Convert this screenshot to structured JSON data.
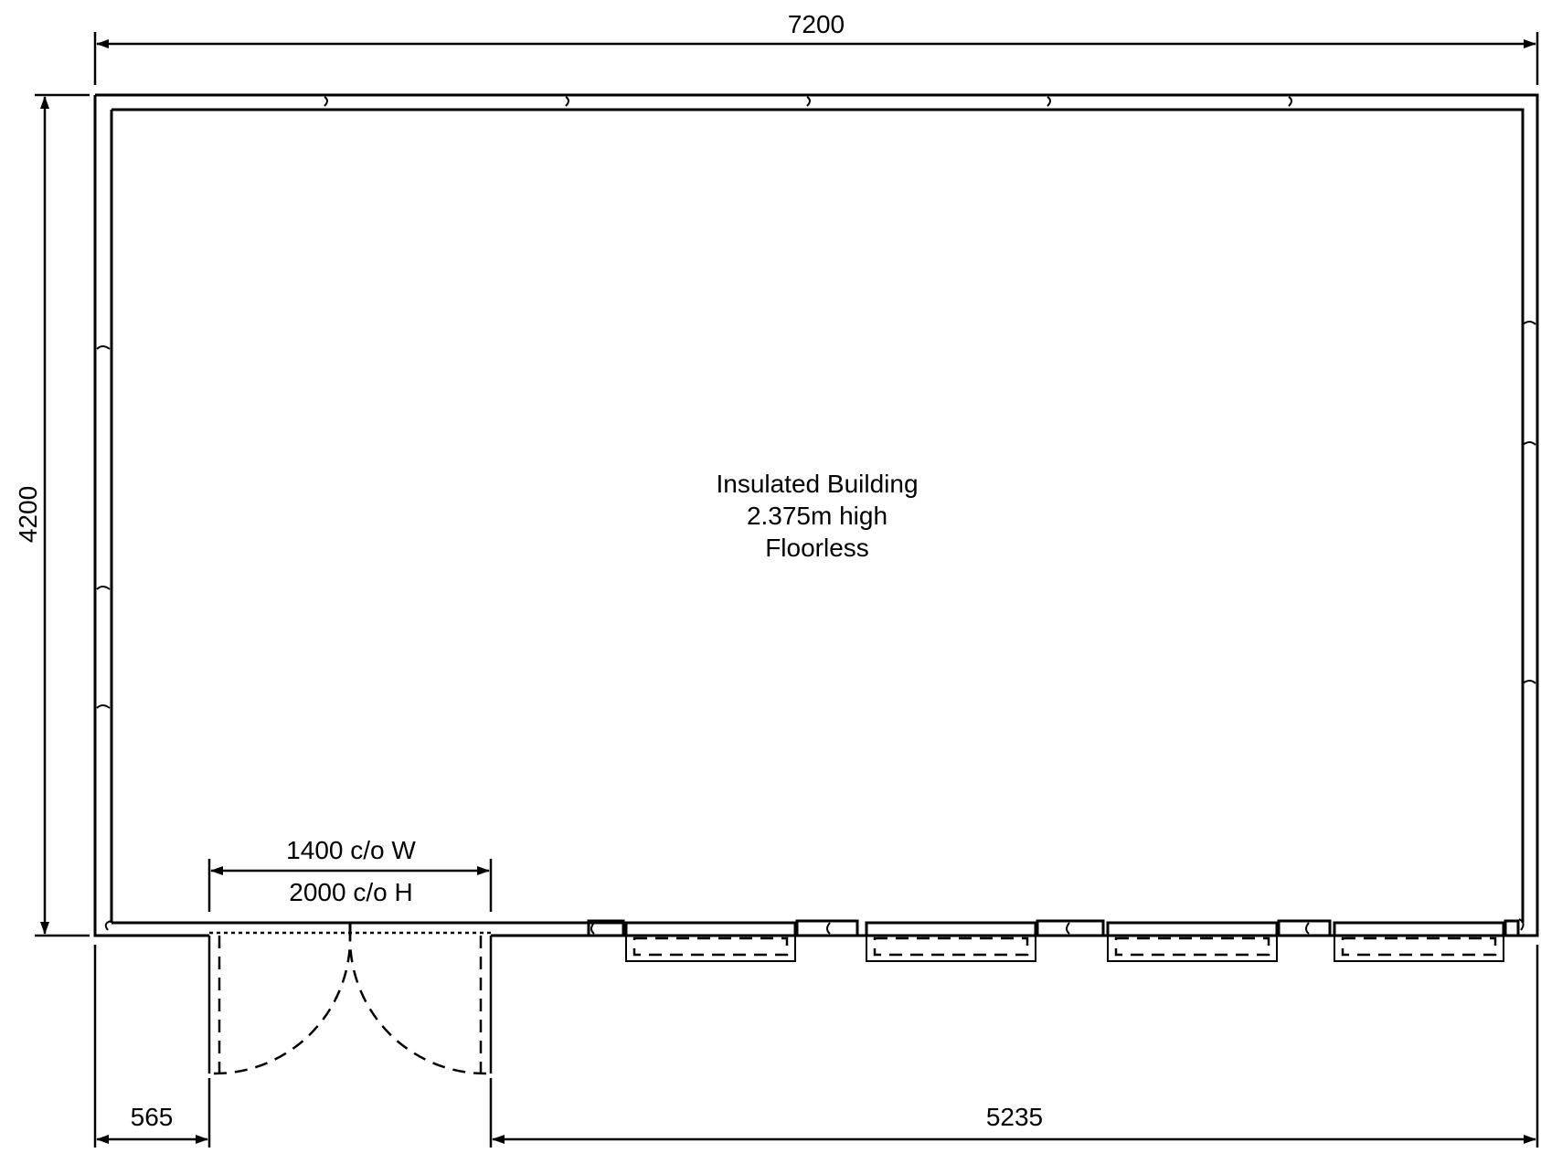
{
  "dimensions": {
    "overall_width": "7200",
    "overall_depth": "4200",
    "left_offset": "565",
    "right_offset": "5235",
    "door_width": "1400 c/o W",
    "door_height": "2000 c/o H"
  },
  "building": {
    "line1": "Insulated Building",
    "line2": "2.375m high",
    "line3": "Floorless"
  }
}
